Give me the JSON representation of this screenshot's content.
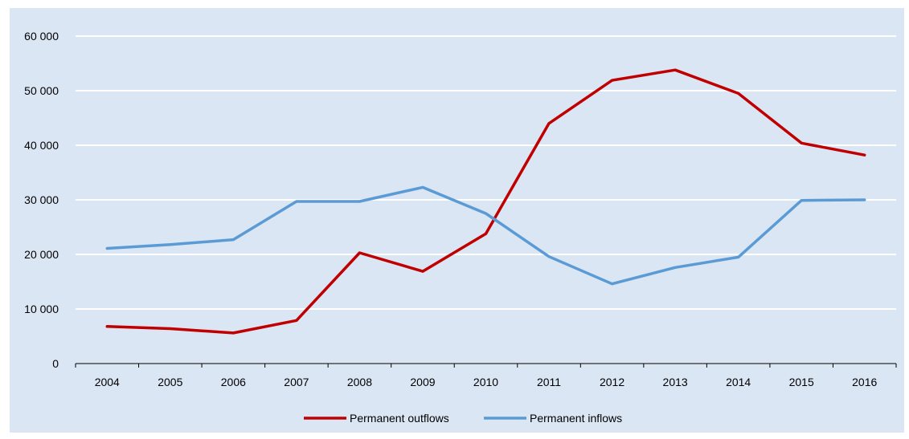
{
  "chart_data": {
    "type": "line",
    "title": "",
    "xlabel": "",
    "ylabel": "",
    "categories": [
      "2004",
      "2005",
      "2006",
      "2007",
      "2008",
      "2009",
      "2010",
      "2011",
      "2012",
      "2013",
      "2014",
      "2015",
      "2016"
    ],
    "ylim": [
      0,
      60000
    ],
    "y_ticks": [
      0,
      10000,
      20000,
      30000,
      40000,
      50000,
      60000
    ],
    "y_tick_labels": [
      "0",
      "10 000",
      "20 000",
      "30 000",
      "40 000",
      "50 000",
      "60 000"
    ],
    "grid": "horizontal",
    "legend_position": "bottom",
    "series": [
      {
        "name": "Permanent outflows",
        "color": "#c00000",
        "values": [
          6800,
          6400,
          5600,
          7900,
          20300,
          16900,
          23800,
          44000,
          51900,
          53800,
          49500,
          40400,
          38200
        ]
      },
      {
        "name": "Permanent inflows",
        "color": "#5b9bd5",
        "values": [
          21100,
          21800,
          22700,
          29700,
          29700,
          32300,
          27500,
          19600,
          14600,
          17600,
          19500,
          29900,
          30000
        ]
      }
    ]
  }
}
